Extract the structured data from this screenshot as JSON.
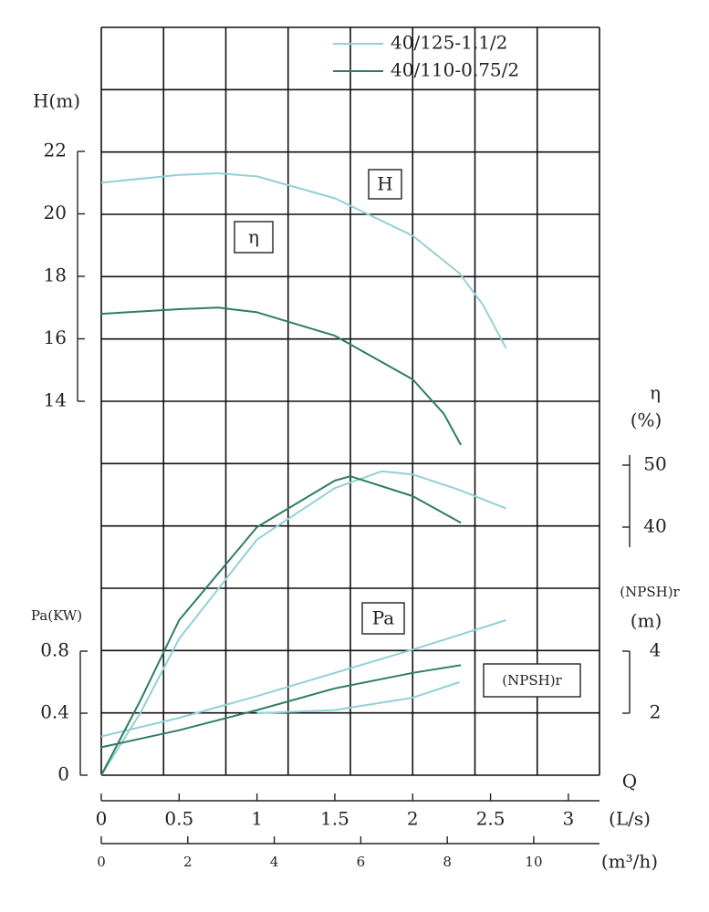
{
  "chart_data": {
    "type": "line",
    "xlabel": "Q",
    "xunit": "(L/s)",
    "xlim": [
      0,
      3.2
    ],
    "xticks": [
      0,
      0.5,
      1,
      1.5,
      2,
      2.5,
      3
    ],
    "x2unit": "(m³/h)",
    "x2lim": [
      0,
      11.52
    ],
    "x2ticks": [
      0,
      2,
      4,
      6,
      8,
      10
    ],
    "grid": true,
    "axes": [
      {
        "label": [
          "H(m)"
        ],
        "ylim": [
          14,
          22
        ],
        "yticks": [
          14,
          16,
          18,
          20,
          22
        ],
        "side": "left"
      },
      {
        "label": [
          "η",
          "(%)"
        ],
        "ylim": [
          0,
          50
        ],
        "yticks": [
          40,
          50
        ],
        "side": "right"
      },
      {
        "label": [
          "Pa(KW)"
        ],
        "ylim": [
          0,
          0.8
        ],
        "yticks": [
          0,
          0.4,
          0.8
        ],
        "side": "left"
      },
      {
        "label": [
          "(NPSH)r",
          "(m)"
        ],
        "ylim": [
          0,
          4
        ],
        "yticks": [
          2,
          4
        ],
        "side": "right"
      }
    ],
    "annotations": [
      "H",
      "η",
      "Pa",
      "(NPSH)r"
    ],
    "series": [
      {
        "name": "40/125-1.1/2",
        "color": "#93d0d8",
        "curves": [
          {
            "axis": 0,
            "x": [
              0,
              0.5,
              0.75,
              1,
              1.5,
              2,
              2.3,
              2.45,
              2.6
            ],
            "values": [
              21.0,
              21.25,
              21.3,
              21.2,
              20.5,
              19.3,
              18.1,
              17.1,
              15.7
            ]
          },
          {
            "axis": 1,
            "x": [
              0,
              0.25,
              0.5,
              1,
              1.5,
              1.8,
              2,
              2.3,
              2.6
            ],
            "values": [
              0,
              10,
              22,
              38,
              46.3,
              49,
              48.5,
              46,
              43
            ]
          },
          {
            "axis": 2,
            "x": [
              0,
              0.5,
              1,
              1.5,
              2,
              2.6
            ],
            "values": [
              0.25,
              0.37,
              0.51,
              0.66,
              0.81,
              1.0
            ]
          },
          {
            "axis": 3,
            "x": [
              1,
              1.5,
              2,
              2.3
            ],
            "values": [
              2.0,
              2.1,
              2.5,
              3.0
            ]
          }
        ]
      },
      {
        "name": "40/110-0.75/2",
        "color": "#2e7d62",
        "curves": [
          {
            "axis": 0,
            "x": [
              0,
              0.5,
              0.75,
              1,
              1.5,
              2,
              2.2,
              2.31
            ],
            "values": [
              16.8,
              16.95,
              17.0,
              16.85,
              16.1,
              14.7,
              13.6,
              12.6
            ]
          },
          {
            "axis": 1,
            "x": [
              0,
              0.25,
              0.5,
              1,
              1.5,
              1.6,
              2,
              2.31
            ],
            "values": [
              0,
              12,
              25,
              40,
              47.5,
              48.2,
              45,
              40.7
            ]
          },
          {
            "axis": 2,
            "x": [
              0,
              0.5,
              1,
              1.5,
              2,
              2.31
            ],
            "values": [
              0.18,
              0.29,
              0.42,
              0.56,
              0.66,
              0.71
            ]
          }
        ]
      }
    ]
  }
}
